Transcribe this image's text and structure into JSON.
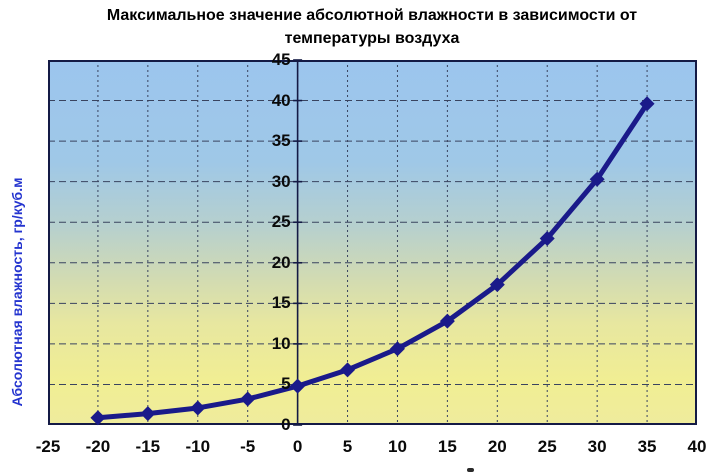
{
  "chart_data": {
    "type": "line",
    "title": "Максимальное значение абсолютной влажности в зависимости от температуры воздуха",
    "ylabel": "Абсолютная влажность, гр/куб.м",
    "xlabel": "",
    "x": [
      -20,
      -15,
      -10,
      -5,
      0,
      5,
      10,
      15,
      20,
      25,
      30,
      35
    ],
    "values": [
      0.9,
      1.4,
      2.1,
      3.2,
      4.8,
      6.8,
      9.4,
      12.8,
      17.3,
      23.0,
      30.3,
      39.6
    ],
    "xlim": [
      -25,
      40
    ],
    "ylim": [
      0,
      45
    ],
    "x_ticks": [
      -25,
      -20,
      -15,
      -10,
      -5,
      0,
      5,
      10,
      15,
      20,
      25,
      30,
      35,
      40
    ],
    "y_ticks": [
      0,
      5,
      10,
      15,
      20,
      25,
      30,
      35,
      40,
      45
    ],
    "grid": "dashed, both axes, every 5 units",
    "legend": "none",
    "marker": "diamond",
    "value_axis_position": "at x = 0",
    "colors": {
      "line": "#1a1a8a",
      "marker": "#1a1a8a",
      "axis": "#141a45",
      "grid": "#39435f",
      "tick_label": "#0a0a0a",
      "title": "#000000",
      "ylabel": "#2434cf",
      "plot_bg_top": "#9cc5ee",
      "plot_bg_bottom": "#efec9d"
    }
  }
}
